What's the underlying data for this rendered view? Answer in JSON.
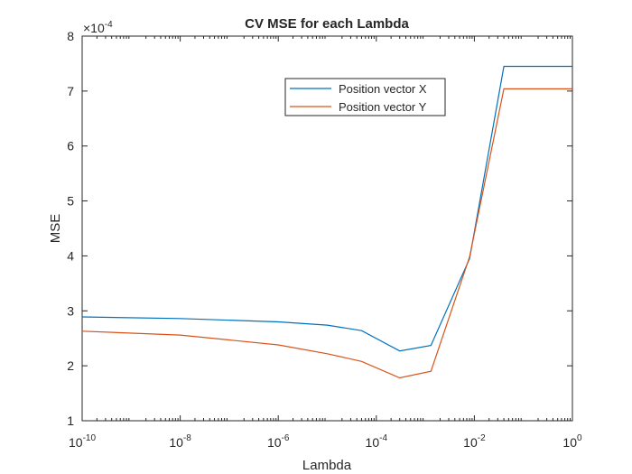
{
  "chart_data": {
    "type": "line",
    "title": "CV MSE for each Lambda",
    "xlabel": "Lambda",
    "ylabel": "MSE",
    "xscale": "log",
    "xlim": [
      1e-10,
      1
    ],
    "ylim": [
      1,
      8
    ],
    "y_exponent_label": "×10",
    "y_exponent_power": "-4",
    "grid": false,
    "legend_position": "top-right",
    "x_ticks": [
      {
        "value": 1e-10,
        "base": "10",
        "power": "-10"
      },
      {
        "value": 1e-08,
        "base": "10",
        "power": "-8"
      },
      {
        "value": 1e-06,
        "base": "10",
        "power": "-6"
      },
      {
        "value": 0.0001,
        "base": "10",
        "power": "-4"
      },
      {
        "value": 0.01,
        "base": "10",
        "power": "-2"
      },
      {
        "value": 1,
        "base": "10",
        "power": "0"
      }
    ],
    "y_ticks": [
      {
        "value": 1,
        "label": "1"
      },
      {
        "value": 2,
        "label": "2"
      },
      {
        "value": 3,
        "label": "3"
      },
      {
        "value": 4,
        "label": "4"
      },
      {
        "value": 5,
        "label": "5"
      },
      {
        "value": 6,
        "label": "6"
      },
      {
        "value": 7,
        "label": "7"
      },
      {
        "value": 8,
        "label": "8"
      }
    ],
    "series": [
      {
        "name": "Position vector X",
        "color": "#0072BD",
        "x": [
          1e-10,
          1e-08,
          1e-06,
          1e-05,
          5e-05,
          0.0003,
          0.0013,
          0.008,
          0.04,
          1
        ],
        "y": [
          2.89,
          2.86,
          2.8,
          2.74,
          2.64,
          2.27,
          2.37,
          3.95,
          7.45,
          7.45
        ]
      },
      {
        "name": "Position vector Y",
        "color": "#D95319",
        "x": [
          1e-10,
          1e-08,
          1e-06,
          1e-05,
          5e-05,
          0.0003,
          0.0013,
          0.008,
          0.04,
          1
        ],
        "y": [
          2.63,
          2.56,
          2.38,
          2.22,
          2.08,
          1.78,
          1.9,
          3.98,
          7.04,
          7.04
        ]
      }
    ]
  }
}
